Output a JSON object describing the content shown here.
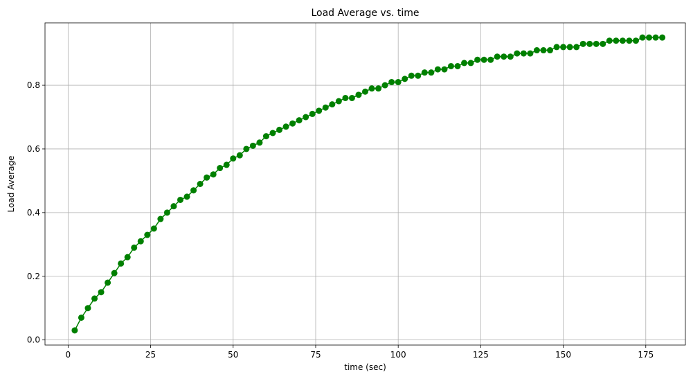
{
  "chart_data": {
    "type": "line",
    "title": "Load Average vs. time",
    "xlabel": "time (sec)",
    "ylabel": "Load Average",
    "xlim": [
      -7,
      187
    ],
    "ylim": [
      -0.016,
      0.996
    ],
    "xticks": [
      0,
      25,
      50,
      75,
      100,
      125,
      150,
      175
    ],
    "yticks": [
      0.0,
      0.2,
      0.4,
      0.6,
      0.8
    ],
    "ytick_labels": [
      "0.0",
      "0.2",
      "0.4",
      "0.6",
      "0.8"
    ],
    "xtick_labels": [
      "0",
      "25",
      "50",
      "75",
      "100",
      "125",
      "150",
      "175"
    ],
    "grid": true,
    "marker": "circle",
    "color": "#008000",
    "series": [
      {
        "x": [
          2,
          4,
          6,
          8,
          10,
          12,
          14,
          16,
          18,
          20,
          22,
          24,
          26,
          28,
          30,
          32,
          34,
          36,
          38,
          40,
          42,
          44,
          46,
          48,
          50,
          52,
          54,
          56,
          58,
          60,
          62,
          64,
          66,
          68,
          70,
          72,
          74,
          76,
          78,
          80,
          82,
          84,
          86,
          88,
          90,
          92,
          94,
          96,
          98,
          100,
          102,
          104,
          106,
          108,
          110,
          112,
          114,
          116,
          118,
          120,
          122,
          124,
          126,
          128,
          130,
          132,
          134,
          136,
          138,
          140,
          142,
          144,
          146,
          148,
          150,
          152,
          154,
          156,
          158,
          160,
          162,
          164,
          166,
          168,
          170,
          172,
          174,
          176,
          178,
          180
        ],
        "y": [
          0.03,
          0.07,
          0.1,
          0.13,
          0.15,
          0.18,
          0.21,
          0.24,
          0.26,
          0.29,
          0.31,
          0.33,
          0.35,
          0.38,
          0.4,
          0.42,
          0.44,
          0.45,
          0.47,
          0.49,
          0.51,
          0.52,
          0.54,
          0.55,
          0.57,
          0.58,
          0.6,
          0.61,
          0.62,
          0.64,
          0.65,
          0.66,
          0.67,
          0.68,
          0.69,
          0.7,
          0.71,
          0.72,
          0.73,
          0.74,
          0.75,
          0.76,
          0.76,
          0.77,
          0.78,
          0.79,
          0.79,
          0.8,
          0.81,
          0.81,
          0.82,
          0.83,
          0.83,
          0.84,
          0.84,
          0.85,
          0.85,
          0.86,
          0.86,
          0.87,
          0.87,
          0.88,
          0.88,
          0.88,
          0.89,
          0.89,
          0.89,
          0.9,
          0.9,
          0.9,
          0.91,
          0.91,
          0.91,
          0.92,
          0.92,
          0.92,
          0.92,
          0.93,
          0.93,
          0.93,
          0.93,
          0.94,
          0.94,
          0.94,
          0.94,
          0.94,
          0.95,
          0.95,
          0.95,
          0.95
        ]
      }
    ]
  }
}
